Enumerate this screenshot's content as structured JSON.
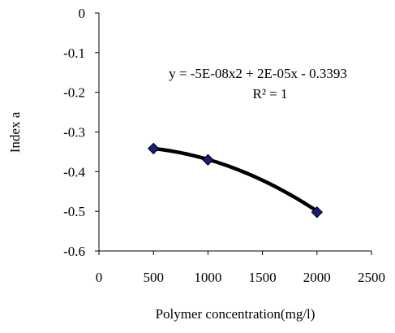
{
  "chart_data": {
    "type": "scatter",
    "xlabel": "Polymer concentration(mg/l)",
    "ylabel": "Index a",
    "xlim": [
      0,
      2500
    ],
    "ylim": [
      -0.6,
      0
    ],
    "x_ticks": [
      0,
      500,
      1000,
      1500,
      2000,
      2500
    ],
    "x_tick_labels": [
      "0",
      "500",
      "1000",
      "1500",
      "2000",
      "2500"
    ],
    "y_ticks": [
      0,
      -0.1,
      -0.2,
      -0.3,
      -0.4,
      -0.5,
      -0.6
    ],
    "y_tick_labels": [
      "0",
      "-0.1",
      "-0.2",
      "-0.3",
      "-0.4",
      "-0.5",
      "-0.6"
    ],
    "grid": false,
    "series": [
      {
        "x": [
          500,
          1000,
          2000
        ],
        "y": [
          -0.3418,
          -0.3702,
          -0.5022
        ],
        "marker": "diamond",
        "marker_color": "#1a1a7a"
      }
    ],
    "trendline": {
      "type": "polynomial",
      "order": 2,
      "coefficients": [
        -5e-08,
        2e-05,
        -0.3393
      ],
      "x_range": [
        500,
        2000
      ],
      "color": "#000000"
    },
    "annotations": {
      "equation": "y = -5E-08x2 + 2E-05x - 0.3393",
      "r_squared": "R² = 1"
    }
  }
}
